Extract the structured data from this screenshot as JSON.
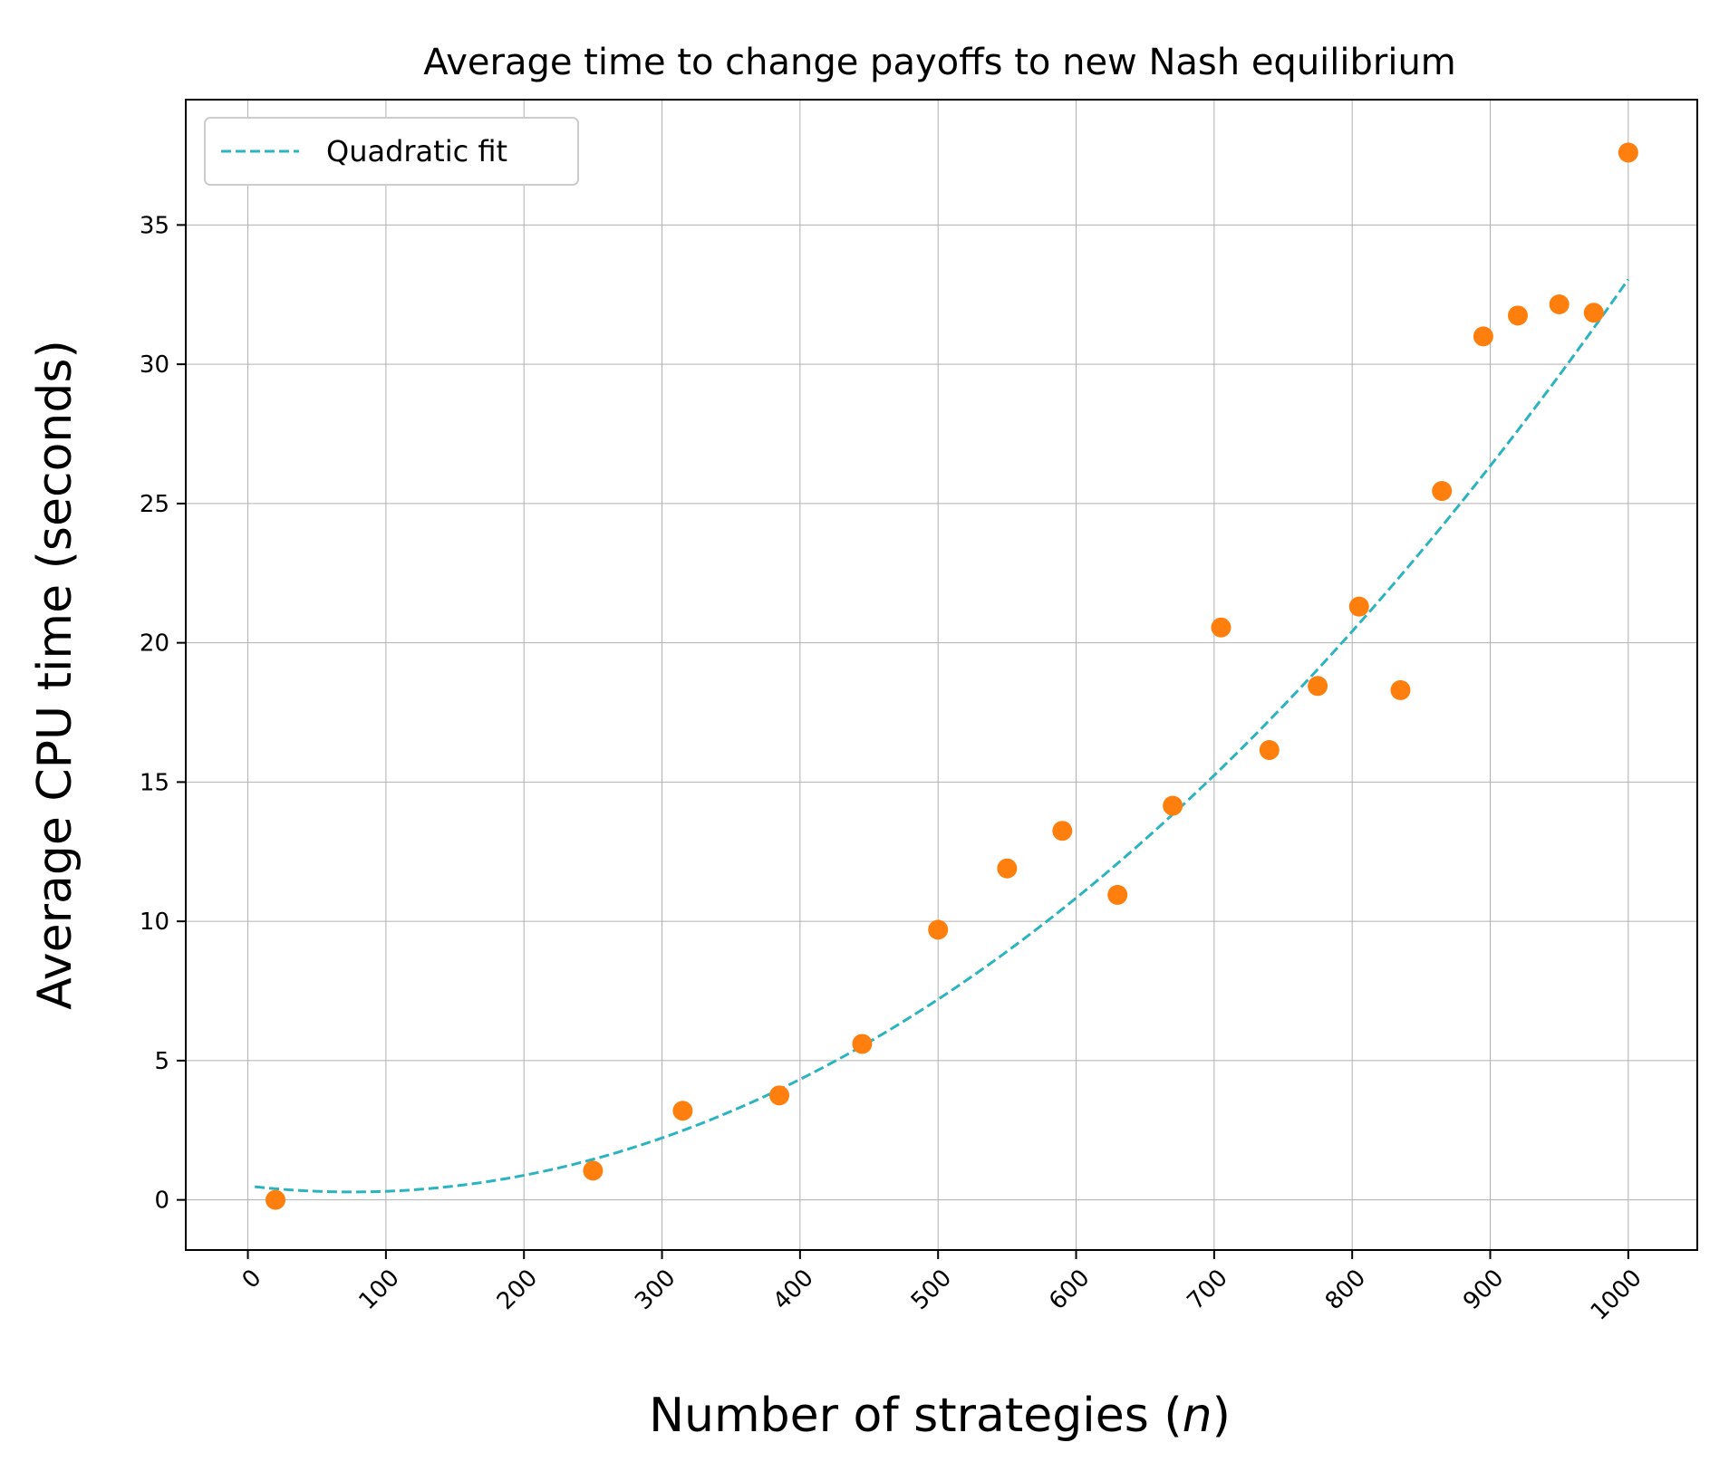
{
  "chart_data": {
    "type": "scatter",
    "title": "Average time to change payoffs to new Nash equilibrium",
    "xlabel_text": "Number of strategies (",
    "xlabel_var": "n",
    "xlabel_close": ")",
    "ylabel": "Average CPU time (seconds)",
    "xlim": [
      -45,
      1050
    ],
    "ylim": [
      -1.8,
      39.5
    ],
    "xticks": [
      0,
      100,
      200,
      300,
      400,
      500,
      600,
      700,
      800,
      900,
      1000
    ],
    "yticks": [
      0,
      5,
      10,
      15,
      20,
      25,
      30,
      35
    ],
    "grid": true,
    "legend_position": "upper-left",
    "series": [
      {
        "marker": "circle",
        "color": "#ff7f0e",
        "x": [
          20,
          250,
          315,
          385,
          445,
          500,
          550,
          590,
          630,
          670,
          705,
          740,
          775,
          805,
          835,
          865,
          895,
          920,
          950,
          975,
          1000
        ],
        "y": [
          0.0,
          1.05,
          3.2,
          3.75,
          5.6,
          9.7,
          11.9,
          13.25,
          10.95,
          14.15,
          20.55,
          16.15,
          18.45,
          21.3,
          18.3,
          25.45,
          31.0,
          31.75,
          32.15,
          31.85,
          37.6
        ]
      },
      {
        "name": "Quadratic fit",
        "marker": "dashed-line",
        "color": "#2ab4c0",
        "fit": "quadratic",
        "x_range": [
          5,
          1000
        ],
        "coefficients": {
          "a": 3.83e-05,
          "b": -0.00575,
          "c": 0.5
        }
      }
    ]
  }
}
